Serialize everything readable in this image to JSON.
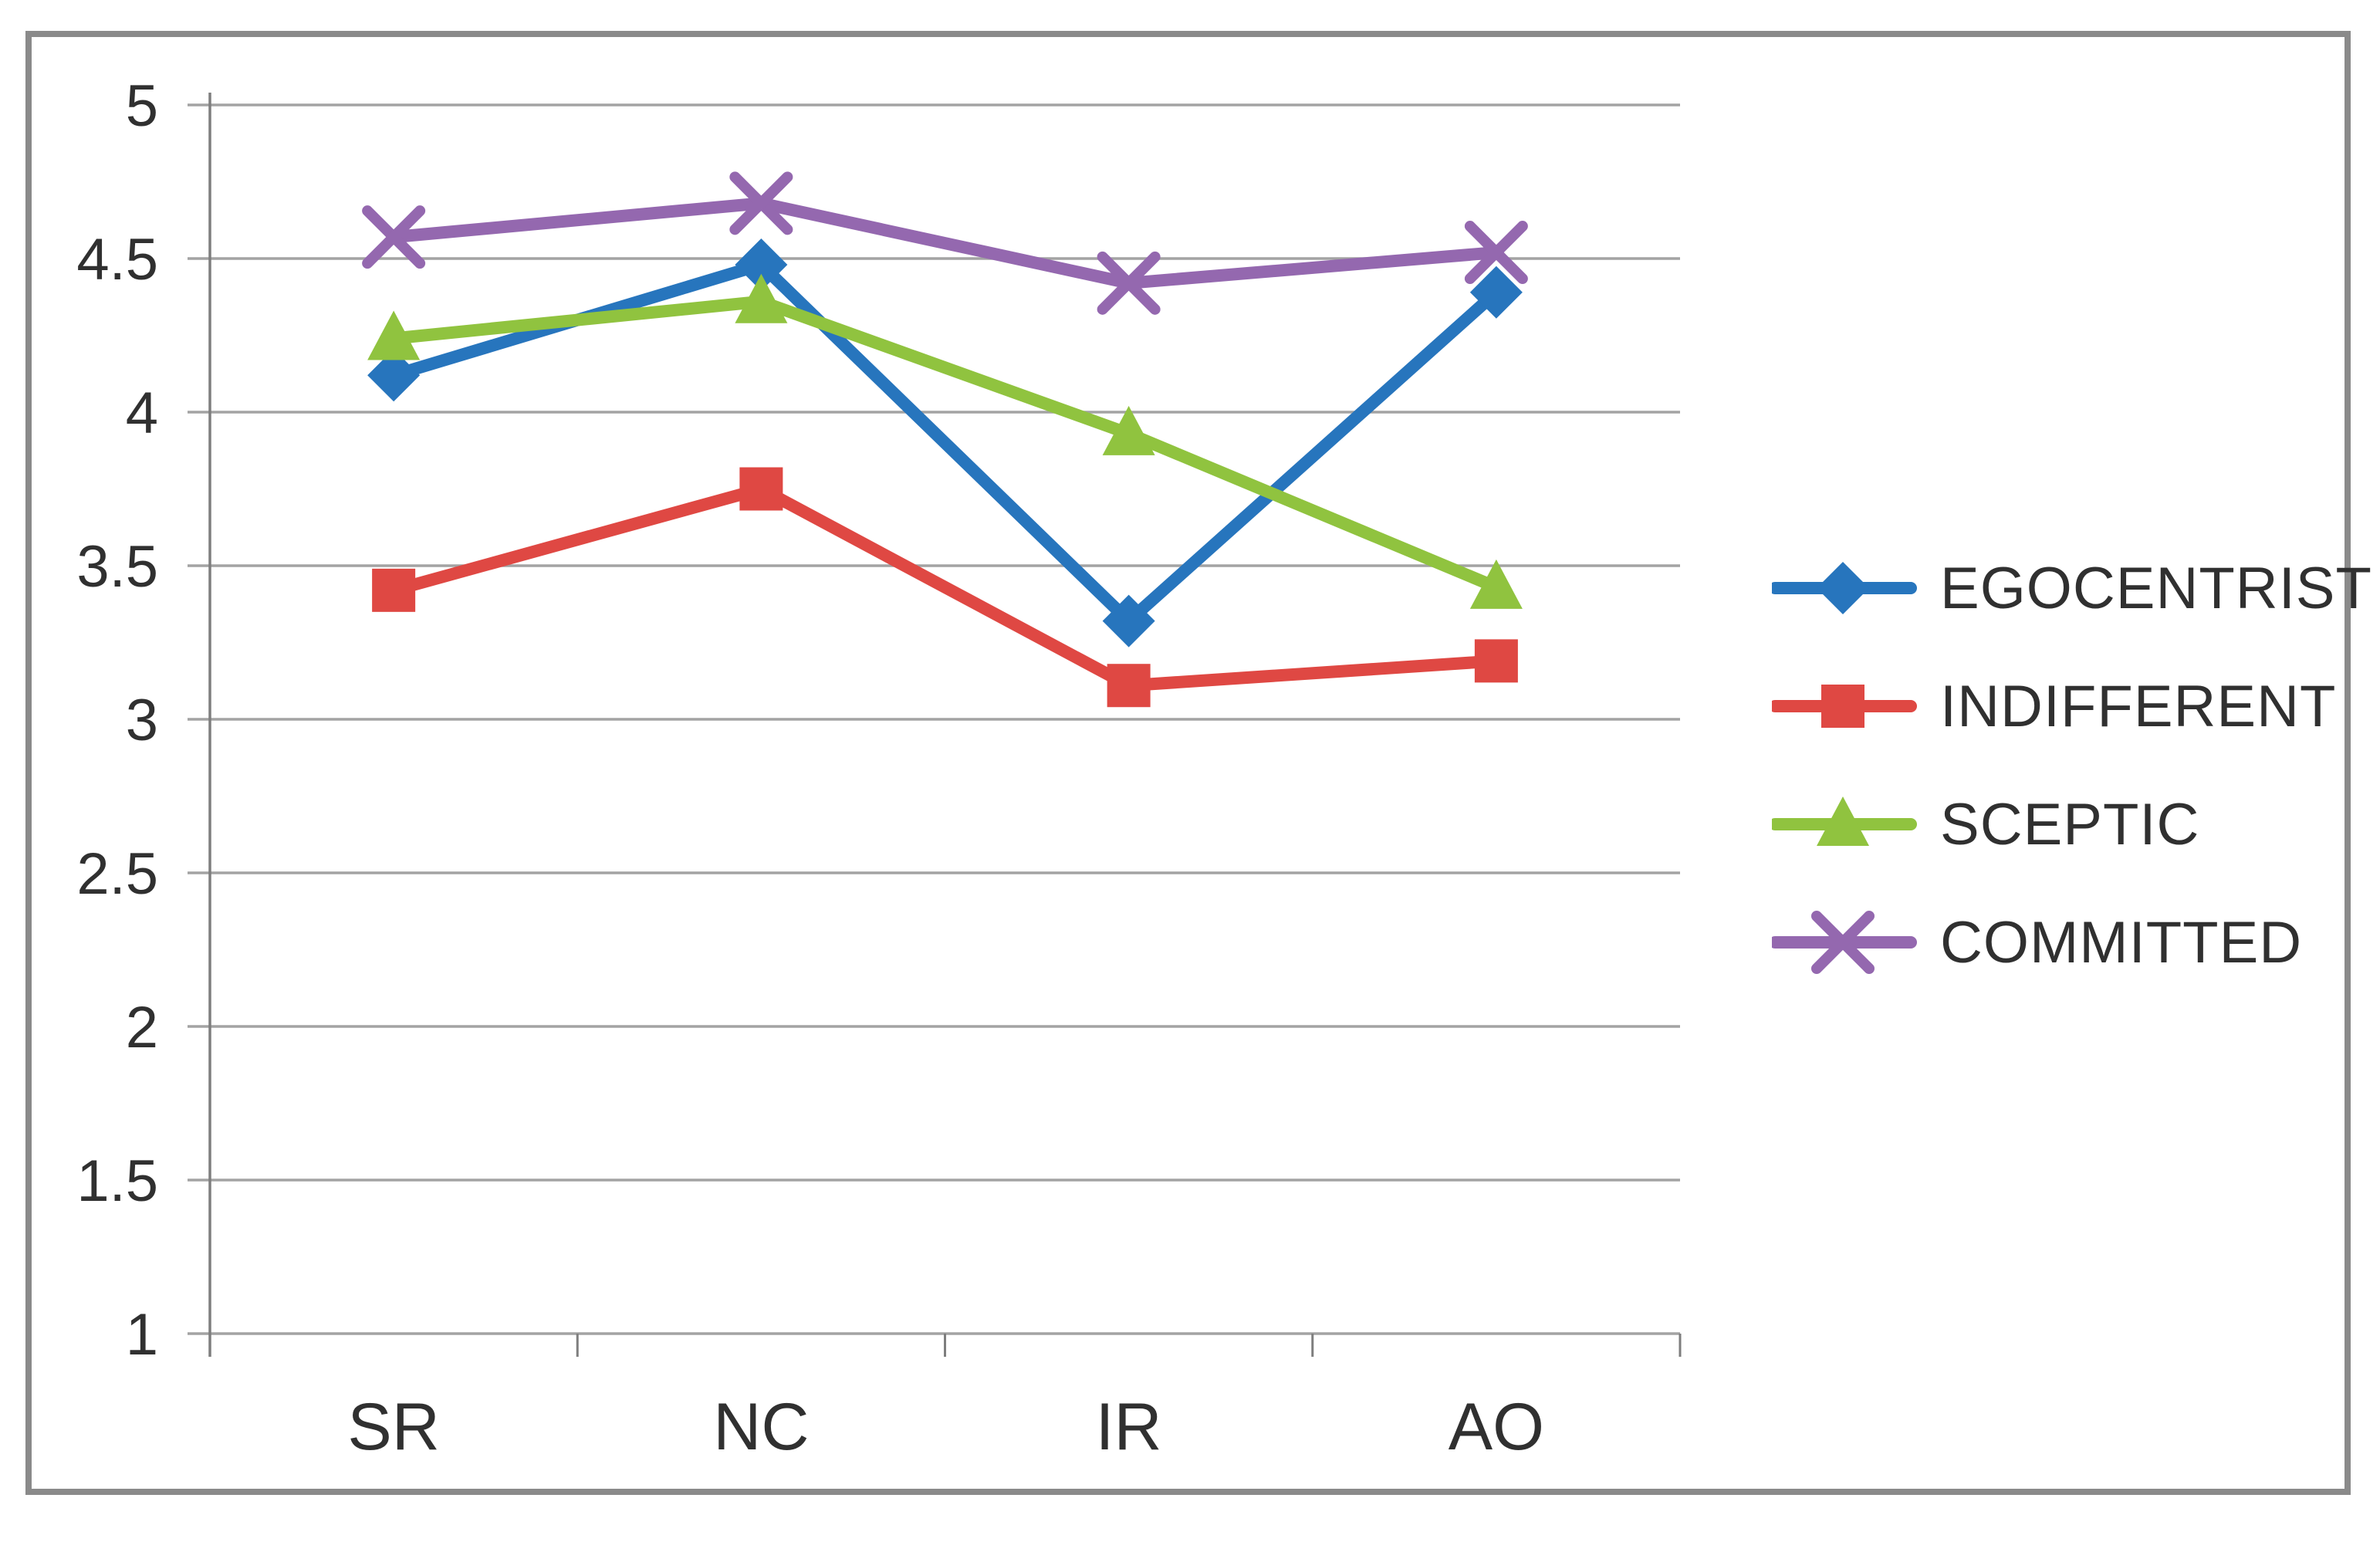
{
  "chart_data": {
    "type": "line",
    "categories": [
      "SR",
      "NC",
      "IR",
      "AO"
    ],
    "series": [
      {
        "name": "EGOCENTRIST",
        "color": "#2775BD",
        "marker": "diamond",
        "values": [
          4.12,
          4.48,
          3.32,
          4.39
        ]
      },
      {
        "name": "INDIFFERENT",
        "color": "#DF4843",
        "marker": "square",
        "values": [
          3.42,
          3.75,
          3.11,
          3.19
        ]
      },
      {
        "name": "SCEPTIC",
        "color": "#90C33F",
        "marker": "triangle",
        "values": [
          4.24,
          4.36,
          3.93,
          3.43
        ]
      },
      {
        "name": "COMMITTED",
        "color": "#9468AF",
        "marker": "x",
        "values": [
          4.57,
          4.68,
          4.42,
          4.52
        ]
      }
    ],
    "ylim": [
      1,
      5
    ],
    "ytick_step": 0.5,
    "yticks": [
      "5",
      "4.5",
      "4",
      "3.5",
      "3",
      "2.5",
      "2",
      "1.5",
      "1"
    ],
    "grid": true,
    "legend_position": "right"
  },
  "colors": {
    "gridline": "#A3A3A3",
    "axis": "#7E7E7E",
    "frame_border": "#8A8A8A",
    "text": "#303030",
    "background": "#FFFFFF"
  }
}
